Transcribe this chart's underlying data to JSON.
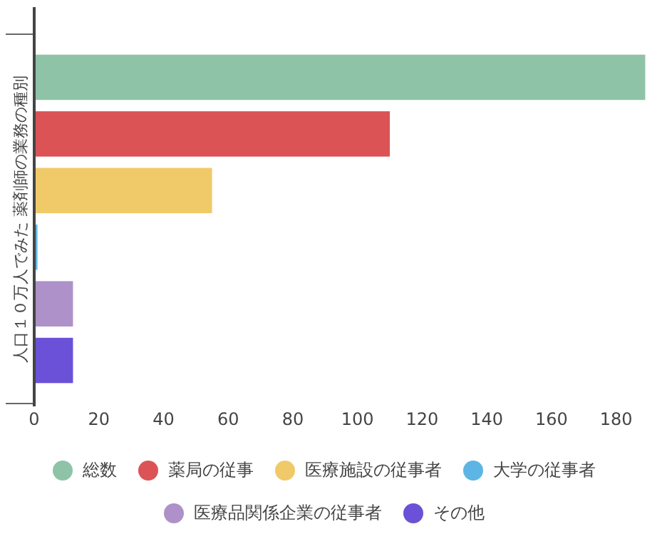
{
  "chart_data": {
    "type": "bar",
    "orientation": "horizontal",
    "ylabel": "人口１０万人でみた 薬剤師の業務の種別",
    "categories": [
      null
    ],
    "series": [
      {
        "name": "総数",
        "color": "#8ec3a7",
        "values": [
          189
        ]
      },
      {
        "name": "薬局の従事",
        "color": "#dc5356",
        "values": [
          110
        ]
      },
      {
        "name": "医療施設の従事者",
        "color": "#f0ca68",
        "values": [
          55
        ]
      },
      {
        "name": "大学の従事者",
        "color": "#5db5e3",
        "values": [
          1
        ]
      },
      {
        "name": "医療品関係企業の従事者",
        "color": "#ad91c8",
        "values": [
          12
        ]
      },
      {
        "name": "その他",
        "color": "#6a51d8",
        "values": [
          12
        ]
      }
    ],
    "xlim": [
      0,
      190
    ],
    "xticks": [
      0,
      20,
      40,
      60,
      80,
      100,
      120,
      140,
      160,
      180
    ],
    "legend": "bottom"
  }
}
